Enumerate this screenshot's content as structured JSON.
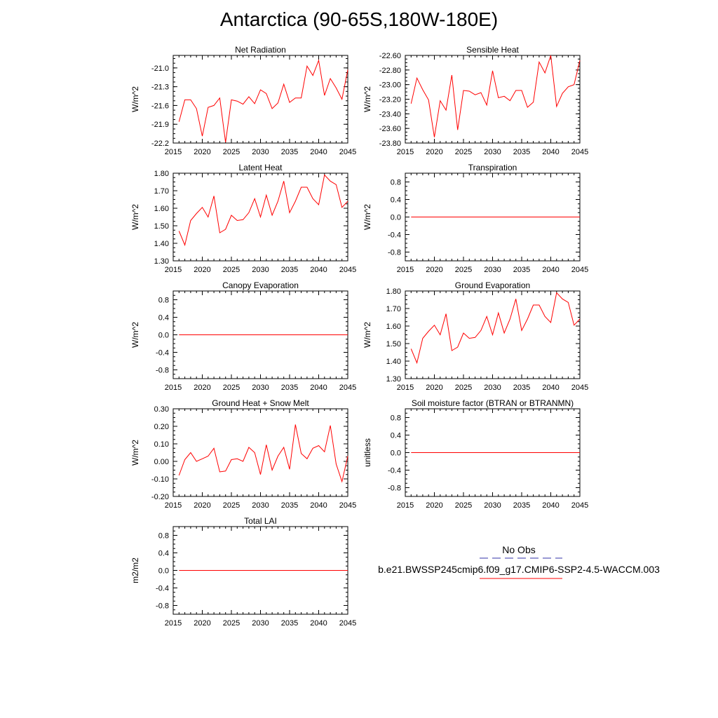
{
  "title": "Antarctica (90-65S,180W-180E)",
  "colors": {
    "series": "#ff0000",
    "obs": "#3333aa",
    "axis": "#000000"
  },
  "legend": {
    "obs_label": "No Obs",
    "model_label": "b.e21.BWSSP245cmip6.f09_g17.CMIP6-SSP2-4.5-WACCM.003"
  },
  "chart_data": [
    {
      "type": "line",
      "title": "Net Radiation",
      "ylabel": "W/m^2",
      "xlim": [
        2015,
        2045
      ],
      "ylim": [
        -22.2,
        -20.8
      ],
      "xticks": [
        2015,
        2020,
        2025,
        2030,
        2035,
        2040,
        2045
      ],
      "yticks": [
        -22.2,
        -21.9,
        -21.6,
        -21.3,
        -21.0
      ],
      "ytick_labels": [
        "-22.2",
        "-21.9",
        "-21.6",
        "-21.3",
        "-21.0"
      ],
      "x": [
        2016,
        2017,
        2018,
        2019,
        2020,
        2021,
        2022,
        2023,
        2024,
        2025,
        2026,
        2027,
        2028,
        2029,
        2030,
        2031,
        2032,
        2033,
        2034,
        2035,
        2036,
        2037,
        2038,
        2039,
        2040,
        2041,
        2042,
        2043,
        2044,
        2045
      ],
      "y": [
        -21.86,
        -21.51,
        -21.51,
        -21.65,
        -22.09,
        -21.63,
        -21.6,
        -21.48,
        -22.19,
        -21.51,
        -21.53,
        -21.58,
        -21.46,
        -21.57,
        -21.35,
        -21.41,
        -21.65,
        -21.56,
        -21.26,
        -21.55,
        -21.48,
        -21.48,
        -20.97,
        -21.12,
        -20.88,
        -21.44,
        -21.17,
        -21.32,
        -21.5,
        -21.03
      ]
    },
    {
      "type": "line",
      "title": "Sensible Heat",
      "ylabel": "W/m^2",
      "xlim": [
        2015,
        2045
      ],
      "ylim": [
        -23.8,
        -22.6
      ],
      "xticks": [
        2015,
        2020,
        2025,
        2030,
        2035,
        2040,
        2045
      ],
      "yticks": [
        -23.8,
        -23.6,
        -23.4,
        -23.2,
        -23.0,
        -22.8,
        -22.6
      ],
      "ytick_labels": [
        "-23.80",
        "-23.60",
        "-23.40",
        "-23.20",
        "-23.00",
        "-22.80",
        "-22.60"
      ],
      "x": [
        2016,
        2017,
        2018,
        2019,
        2020,
        2021,
        2022,
        2023,
        2024,
        2025,
        2026,
        2027,
        2028,
        2029,
        2030,
        2031,
        2032,
        2033,
        2034,
        2035,
        2036,
        2037,
        2038,
        2039,
        2040,
        2041,
        2042,
        2043,
        2044,
        2045
      ],
      "y": [
        -23.26,
        -22.91,
        -23.07,
        -23.21,
        -23.72,
        -23.22,
        -23.35,
        -22.87,
        -23.62,
        -23.08,
        -23.09,
        -23.14,
        -23.11,
        -23.28,
        -22.81,
        -23.18,
        -23.16,
        -23.22,
        -23.08,
        -23.08,
        -23.31,
        -23.24,
        -22.69,
        -22.84,
        -22.6,
        -23.3,
        -23.12,
        -23.03,
        -23.0,
        -22.67
      ]
    },
    {
      "type": "line",
      "title": "Latent Heat",
      "ylabel": "W/m^2",
      "xlim": [
        2015,
        2045
      ],
      "ylim": [
        1.3,
        1.8
      ],
      "xticks": [
        2015,
        2020,
        2025,
        2030,
        2035,
        2040,
        2045
      ],
      "yticks": [
        1.3,
        1.4,
        1.5,
        1.6,
        1.7,
        1.8
      ],
      "ytick_labels": [
        "1.30",
        "1.40",
        "1.50",
        "1.60",
        "1.70",
        "1.80"
      ],
      "x": [
        2016,
        2017,
        2018,
        2019,
        2020,
        2021,
        2022,
        2023,
        2024,
        2025,
        2026,
        2027,
        2028,
        2029,
        2030,
        2031,
        2032,
        2033,
        2034,
        2035,
        2036,
        2037,
        2038,
        2039,
        2040,
        2041,
        2042,
        2043,
        2044,
        2045
      ],
      "y": [
        1.47,
        1.39,
        1.53,
        1.57,
        1.605,
        1.55,
        1.67,
        1.46,
        1.48,
        1.56,
        1.53,
        1.535,
        1.575,
        1.655,
        1.55,
        1.675,
        1.56,
        1.64,
        1.755,
        1.575,
        1.64,
        1.72,
        1.72,
        1.655,
        1.62,
        1.79,
        1.755,
        1.735,
        1.605,
        1.64
      ]
    },
    {
      "type": "line",
      "title": "Transpiration",
      "ylabel": "W/m^2",
      "xlim": [
        2015,
        2045
      ],
      "ylim": [
        -1.0,
        1.0
      ],
      "xticks": [
        2015,
        2020,
        2025,
        2030,
        2035,
        2040,
        2045
      ],
      "yticks": [
        -0.8,
        -0.4,
        0.0,
        0.4,
        0.8
      ],
      "ytick_labels": [
        "-0.8",
        "-0.4",
        "0.0",
        "0.4",
        "0.8"
      ],
      "x": [
        2016,
        2045
      ],
      "y": [
        0,
        0
      ]
    },
    {
      "type": "line",
      "title": "Canopy Evaporation",
      "ylabel": "W/m^2",
      "xlim": [
        2015,
        2045
      ],
      "ylim": [
        -1.0,
        1.0
      ],
      "xticks": [
        2015,
        2020,
        2025,
        2030,
        2035,
        2040,
        2045
      ],
      "yticks": [
        -0.8,
        -0.4,
        0.0,
        0.4,
        0.8
      ],
      "ytick_labels": [
        "-0.8",
        "-0.4",
        "0.0",
        "0.4",
        "0.8"
      ],
      "x": [
        2016,
        2045
      ],
      "y": [
        0,
        0
      ]
    },
    {
      "type": "line",
      "title": "Ground Evaporation",
      "ylabel": "W/m^2",
      "xlim": [
        2015,
        2045
      ],
      "ylim": [
        1.3,
        1.8
      ],
      "xticks": [
        2015,
        2020,
        2025,
        2030,
        2035,
        2040,
        2045
      ],
      "yticks": [
        1.3,
        1.4,
        1.5,
        1.6,
        1.7,
        1.8
      ],
      "ytick_labels": [
        "1.30",
        "1.40",
        "1.50",
        "1.60",
        "1.70",
        "1.80"
      ],
      "x": [
        2016,
        2017,
        2018,
        2019,
        2020,
        2021,
        2022,
        2023,
        2024,
        2025,
        2026,
        2027,
        2028,
        2029,
        2030,
        2031,
        2032,
        2033,
        2034,
        2035,
        2036,
        2037,
        2038,
        2039,
        2040,
        2041,
        2042,
        2043,
        2044,
        2045
      ],
      "y": [
        1.47,
        1.39,
        1.53,
        1.57,
        1.605,
        1.55,
        1.67,
        1.46,
        1.48,
        1.56,
        1.53,
        1.535,
        1.575,
        1.655,
        1.55,
        1.675,
        1.56,
        1.64,
        1.755,
        1.575,
        1.64,
        1.72,
        1.72,
        1.655,
        1.62,
        1.79,
        1.755,
        1.735,
        1.605,
        1.64
      ]
    },
    {
      "type": "line",
      "title": "Ground Heat + Snow Melt",
      "ylabel": "W/m^2",
      "xlim": [
        2015,
        2045
      ],
      "ylim": [
        -0.2,
        0.3
      ],
      "xticks": [
        2015,
        2020,
        2025,
        2030,
        2035,
        2040,
        2045
      ],
      "yticks": [
        -0.2,
        -0.1,
        0.0,
        0.1,
        0.2,
        0.3
      ],
      "ytick_labels": [
        "-0.20",
        "-0.10",
        "0.00",
        "0.10",
        "0.20",
        "0.30"
      ],
      "x": [
        2016,
        2017,
        2018,
        2019,
        2020,
        2021,
        2022,
        2023,
        2024,
        2025,
        2026,
        2027,
        2028,
        2029,
        2030,
        2031,
        2032,
        2033,
        2034,
        2035,
        2036,
        2037,
        2038,
        2039,
        2040,
        2041,
        2042,
        2043,
        2044,
        2045
      ],
      "y": [
        -0.08,
        0.01,
        0.05,
        0.0,
        0.015,
        0.03,
        0.075,
        -0.06,
        -0.055,
        0.01,
        0.015,
        0.0,
        0.08,
        0.05,
        -0.075,
        0.095,
        -0.05,
        0.03,
        0.08,
        -0.045,
        0.21,
        0.045,
        0.015,
        0.075,
        0.09,
        0.055,
        0.205,
        -0.015,
        -0.115,
        0.03
      ]
    },
    {
      "type": "line",
      "title": "Soil moisture factor (BTRAN or BTRANMN)",
      "ylabel": "unitless",
      "xlim": [
        2015,
        2045
      ],
      "ylim": [
        -1.0,
        1.0
      ],
      "xticks": [
        2015,
        2020,
        2025,
        2030,
        2035,
        2040,
        2045
      ],
      "yticks": [
        -0.8,
        -0.4,
        0.0,
        0.4,
        0.8
      ],
      "ytick_labels": [
        "-0.8",
        "-0.4",
        "0.0",
        "0.4",
        "0.8"
      ],
      "x": [
        2016,
        2045
      ],
      "y": [
        0,
        0
      ]
    },
    {
      "type": "line",
      "title": "Total LAI",
      "ylabel": "m2/m2",
      "xlim": [
        2015,
        2045
      ],
      "ylim": [
        -1.0,
        1.0
      ],
      "xticks": [
        2015,
        2020,
        2025,
        2030,
        2035,
        2040,
        2045
      ],
      "yticks": [
        -0.8,
        -0.4,
        0.0,
        0.4,
        0.8
      ],
      "ytick_labels": [
        "-0.8",
        "-0.4",
        "0.0",
        "0.4",
        "0.8"
      ],
      "x": [
        2016,
        2045
      ],
      "y": [
        0,
        0
      ]
    }
  ]
}
